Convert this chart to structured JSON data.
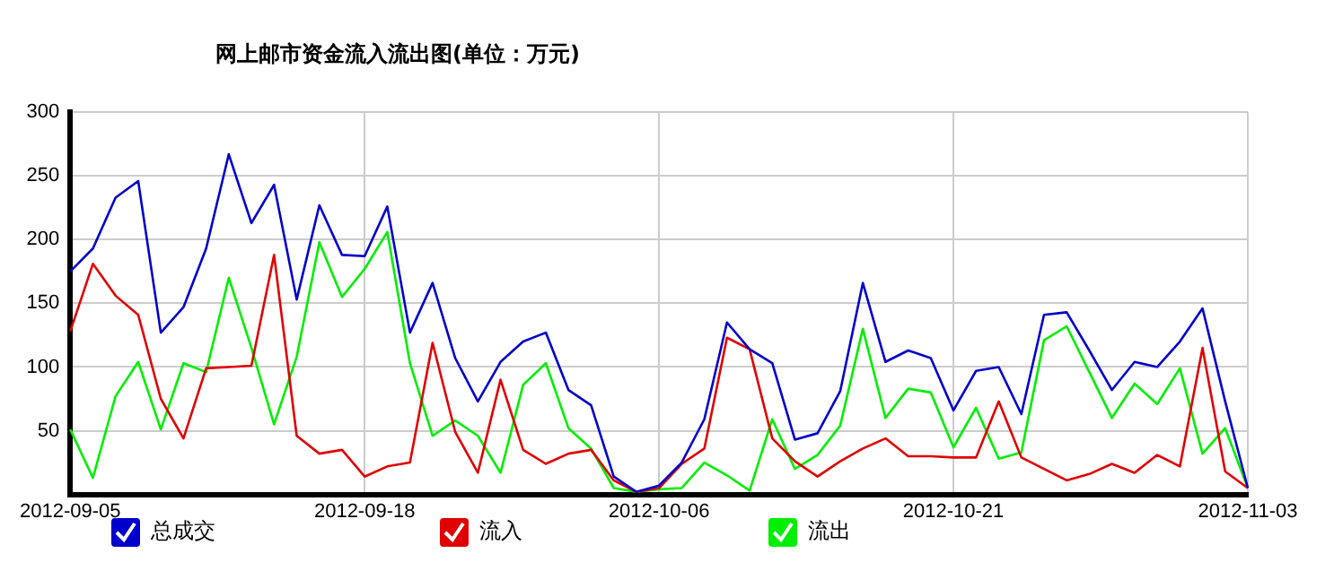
{
  "chart_data": {
    "type": "line",
    "title": "网上邮市资金流入流出图(单位：万元)",
    "categories": [
      "2012-09-05",
      null,
      null,
      null,
      null,
      null,
      null,
      null,
      null,
      null,
      null,
      null,
      null,
      "2012-09-18",
      null,
      null,
      null,
      null,
      null,
      null,
      null,
      null,
      null,
      null,
      null,
      null,
      "2012-10-06",
      null,
      null,
      null,
      null,
      null,
      null,
      null,
      null,
      null,
      null,
      null,
      null,
      "2012-10-21",
      null,
      null,
      null,
      null,
      null,
      null,
      null,
      null,
      null,
      null,
      null,
      null,
      "2012-11-03"
    ],
    "series": [
      {
        "name": "总成交",
        "color": "#0000cc",
        "values": [
          175,
          193,
          233,
          246,
          127,
          147,
          193,
          267,
          213,
          243,
          153,
          227,
          188,
          187,
          226,
          127,
          166,
          107,
          73,
          104,
          120,
          127,
          82,
          70,
          14,
          2,
          7,
          25,
          59,
          135,
          114,
          103,
          43,
          48,
          81,
          166,
          104,
          113,
          107,
          66,
          97,
          100,
          63,
          141,
          143,
          113,
          82,
          104,
          100,
          120,
          146,
          73,
          5
        ]
      },
      {
        "name": "流入",
        "color": "#e00000",
        "values": [
          128,
          181,
          156,
          141,
          75,
          44,
          99,
          100,
          101,
          188,
          46,
          32,
          35,
          14,
          22,
          25,
          119,
          49,
          17,
          90,
          35,
          24,
          32,
          35,
          11,
          2,
          5,
          24,
          36,
          123,
          114,
          44,
          26,
          14,
          26,
          36,
          44,
          30,
          30,
          29,
          29,
          73,
          29,
          20,
          11,
          16,
          24,
          17,
          31,
          22,
          115,
          18,
          5
        ]
      },
      {
        "name": "流出",
        "color": "#00ee00",
        "values": [
          51,
          13,
          77,
          104,
          51,
          103,
          96,
          170,
          115,
          55,
          108,
          198,
          155,
          177,
          206,
          103,
          46,
          58,
          46,
          17,
          86,
          103,
          52,
          36,
          5,
          2,
          4,
          5,
          25,
          15,
          3,
          59,
          20,
          31,
          54,
          130,
          60,
          83,
          80,
          37,
          68,
          28,
          33,
          121,
          132,
          96,
          60,
          87,
          71,
          99,
          32,
          52,
          5
        ]
      }
    ],
    "ylim": [
      0,
      300
    ],
    "yticks": [
      50,
      100,
      150,
      200,
      250,
      300
    ],
    "grid": true,
    "legend": "bottom",
    "marker": "none",
    "line_style": "solid"
  }
}
